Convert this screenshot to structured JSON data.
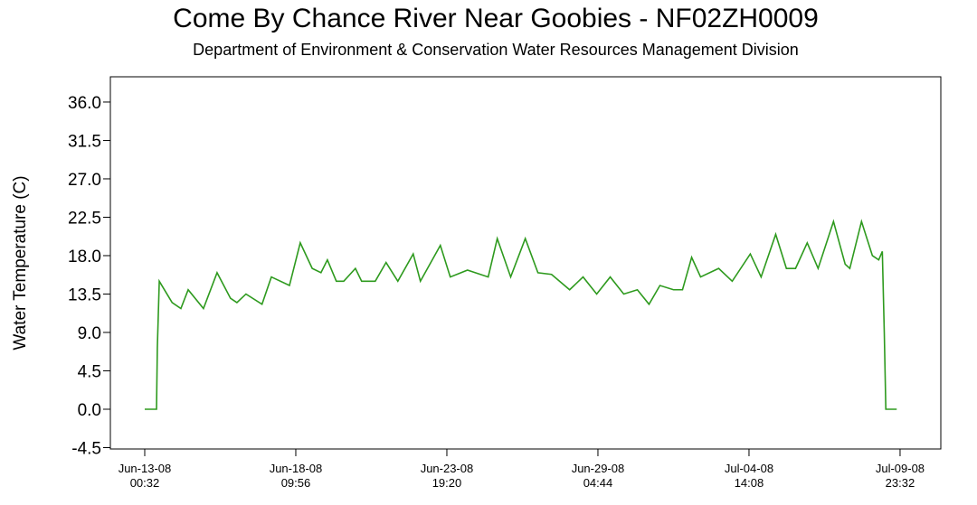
{
  "chart_data": {
    "type": "line",
    "title": "Come By Chance River Near Goobies - NF02ZH0009",
    "subtitle": "Department of Environment & Conservation Water Resources Management Division",
    "y_label": "Water Temperature (C)",
    "xlim": [
      "2008-06-11T19:06",
      "2008-07-11T10:26"
    ],
    "ylim": [
      -4.66,
      38.96
    ],
    "yticks": [
      -4.5,
      {
        "value": 0,
        "label": "0.0"
      },
      4.5,
      {
        "value": 9,
        "label": "9.0"
      },
      13.5,
      {
        "value": 18,
        "label": "18.0"
      },
      22.5,
      {
        "value": 27,
        "label": "27.0"
      },
      31.5,
      {
        "value": 36,
        "label": "36.0"
      }
    ],
    "xticks": [
      {
        "value": "2008-06-13T00:32",
        "label": [
          "Jun-13-08",
          "00:32"
        ]
      },
      {
        "value": "2008-06-18T09:56",
        "label": [
          "Jun-18-08",
          "09:56"
        ]
      },
      {
        "value": "2008-06-23T19:20",
        "label": [
          "Jun-23-08",
          "19:20"
        ]
      },
      {
        "value": "2008-06-29T04:44",
        "label": [
          "Jun-29-08",
          "04:44"
        ]
      },
      {
        "value": "2008-07-04T14:08",
        "label": [
          "Jul-04-08",
          "14:08"
        ]
      },
      {
        "value": "2008-07-09T23:32",
        "label": [
          "Jul-09-08",
          "23:32"
        ]
      }
    ],
    "series": [
      {
        "name": "Water Temperature",
        "color": "#2e9a1e",
        "x": [
          "2008-06-13T00:32",
          "2008-06-13T10:38",
          "2008-06-13T11:20",
          "2008-06-13T13:00",
          "2008-06-14T00:00",
          "2008-06-14T07:30",
          "2008-06-14T13:45",
          "2008-06-15T02:50",
          "2008-06-15T14:30",
          "2008-06-16T02:00",
          "2008-06-16T07:30",
          "2008-06-16T15:15",
          "2008-06-17T05:00",
          "2008-06-17T13:00",
          "2008-06-18T04:30",
          "2008-06-18T13:45",
          "2008-06-19T00:00",
          "2008-06-19T07:30",
          "2008-06-19T13:00",
          "2008-06-19T20:40",
          "2008-06-20T03:00",
          "2008-06-20T13:00",
          "2008-06-20T18:20",
          "2008-06-21T06:00",
          "2008-06-21T15:15",
          "2008-06-22T01:20",
          "2008-06-22T14:30",
          "2008-06-22T20:40",
          "2008-06-23T13:45",
          "2008-06-23T22:15",
          "2008-06-24T13:00",
          "2008-06-25T06:45",
          "2008-06-25T14:30",
          "2008-06-26T02:00",
          "2008-06-26T14:30",
          "2008-06-27T01:20",
          "2008-06-27T13:00",
          "2008-06-28T04:30",
          "2008-06-28T16:00",
          "2008-06-29T03:40",
          "2008-06-29T15:15",
          "2008-06-30T02:50",
          "2008-06-30T14:30",
          "2008-07-01T00:30",
          "2008-07-01T09:50",
          "2008-07-01T21:30",
          "2008-07-02T05:10",
          "2008-07-02T13:00",
          "2008-07-02T20:40",
          "2008-07-03T12:10",
          "2008-07-03T23:45",
          "2008-07-04T15:15",
          "2008-07-05T00:30",
          "2008-07-05T13:00",
          "2008-07-05T22:10",
          "2008-07-06T06:00",
          "2008-07-06T16:00",
          "2008-07-07T01:20",
          "2008-07-07T14:30",
          "2008-07-08T00:30",
          "2008-07-08T04:30",
          "2008-07-08T14:30",
          "2008-07-08T23:50",
          "2008-07-09T05:15",
          "2008-07-09T08:20",
          "2008-07-09T10:00",
          "2008-07-09T11:20",
          "2008-07-09T20:40"
        ],
        "values": [
          0,
          0,
          7.2,
          15,
          12.5,
          11.8,
          14,
          11.8,
          16,
          13,
          12.5,
          13.5,
          12.3,
          15.5,
          14.5,
          19.5,
          16.5,
          16,
          17.5,
          15,
          15,
          16.5,
          15,
          15,
          17.2,
          15,
          18.2,
          15,
          19.2,
          15.5,
          16.3,
          15.5,
          20,
          15.5,
          20,
          16,
          15.8,
          14,
          15.5,
          13.5,
          15.5,
          13.5,
          14,
          12.3,
          14.5,
          14,
          14,
          17.8,
          15.5,
          16.5,
          15,
          18.2,
          15.5,
          20.5,
          16.5,
          16.5,
          19.5,
          16.5,
          22,
          17,
          16.5,
          22,
          18,
          17.5,
          18.5,
          9,
          0,
          0
        ]
      }
    ]
  }
}
